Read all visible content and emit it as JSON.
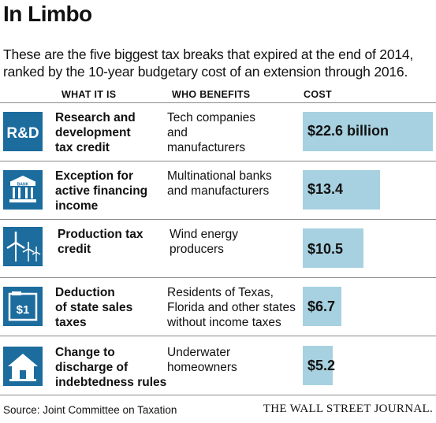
{
  "title": "In Limbo",
  "subtitle": "These are the five biggest tax breaks that expired at the end of 2014, ranked by the 10-year budgetary cost of an extension through 2016.",
  "headers": {
    "what": "WHAT IT IS",
    "who": "WHO BENEFITS",
    "cost": "COST"
  },
  "source": "Source: Joint Committee on Taxation",
  "brand": "THE WALL STREET JOURNAL.",
  "colors": {
    "icon_bg": "#1c6c9e",
    "bar": "#a7d1e0",
    "rule": "#8a8a8a"
  },
  "chart_data": {
    "type": "bar",
    "orientation": "horizontal",
    "unit": "billion",
    "categories": [
      "Research and development tax credit",
      "Exception for active financing income",
      "Production tax credit",
      "Deduction of state sales taxes",
      "Change to discharge of indebtedness rules"
    ],
    "values": [
      22.6,
      13.4,
      10.5,
      6.7,
      5.2
    ],
    "rows": [
      {
        "icon": "r-and-d-icon",
        "icon_text": "R&D",
        "what": "Research and\ndevelopment\ntax credit",
        "who": "Tech companies\nand\nmanufacturers",
        "label": "$22.6 billion",
        "value": 22.6
      },
      {
        "icon": "bank-icon",
        "icon_text": "BANK",
        "what": "Exception for\nactive financing\nincome",
        "who": "Multinational banks\nand manufacturers",
        "label": "$13.4",
        "value": 13.4
      },
      {
        "icon": "wind-turbine-icon",
        "icon_text": "",
        "what": "Production tax\ncredit",
        "who": "Wind energy\nproducers",
        "label": "$10.5",
        "value": 10.5
      },
      {
        "icon": "dollar-register-icon",
        "icon_text": "$1",
        "what": "Deduction\nof state sales\ntaxes",
        "who": "Residents of Texas,\nFlorida and other states\nwithout income taxes",
        "label": "$6.7",
        "value": 6.7
      },
      {
        "icon": "house-icon",
        "icon_text": "",
        "what": "Change to\ndischarge of\nindebtedness rules",
        "who": "Underwater\nhomeowners",
        "label": "$5.2",
        "value": 5.2
      }
    ]
  }
}
